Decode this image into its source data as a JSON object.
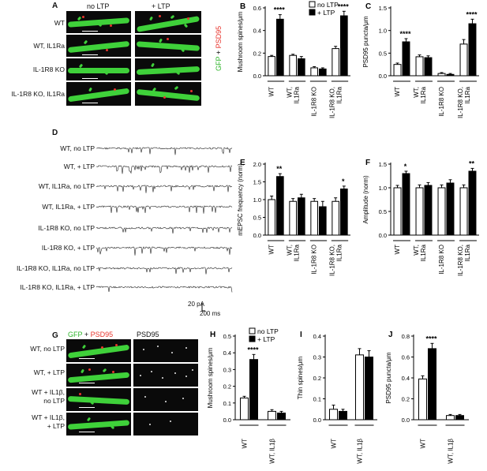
{
  "panelA": {
    "label": "A",
    "col_headers": [
      "no LTP",
      "+ LTP"
    ],
    "rows": [
      "WT",
      "WT, IL1Ra",
      "IL-1R8 KO",
      "IL-1R8 KO, IL1Ra"
    ],
    "legend_gfp": "GFP",
    "legend_plus": "+",
    "legend_psd": "PSD95"
  },
  "panelD": {
    "label": "D",
    "rows": [
      "WT, no LTP",
      "WT, + LTP",
      "WT, IL1Ra, no LTP",
      "WT, IL1Ra, + LTP",
      "IL-1R8 KO, no LTP",
      "IL-1R8 KO, + LTP",
      "IL-1R8 KO, IL1Ra, no LTP",
      "IL-1R8 KO, IL1Ra, + LTP"
    ],
    "scale_pa": "20 pA",
    "scale_ms": "200 ms"
  },
  "panelG": {
    "label": "G",
    "col_gfp": "GFP",
    "col_plus": "+",
    "col_psd_red": "PSD95",
    "col_psd": "PSD95",
    "rows": [
      {
        "line1": "WT, no LTP",
        "line2": ""
      },
      {
        "line1": "WT, + LTP",
        "line2": ""
      },
      {
        "line1": "WT + IL1β,",
        "line2": "no LTP"
      },
      {
        "line1": "WT + IL1β,",
        "line2": "+ LTP"
      }
    ]
  },
  "colors": {
    "no_ltp": "#ffffff",
    "ltp": "#000000",
    "gfp": "#3fd13a",
    "psd95": "#e8342c"
  },
  "chart_data": [
    {
      "panel": "B",
      "type": "bar",
      "ylabel": "Mushroom spines/μm",
      "ylim": [
        0,
        0.6
      ],
      "yticks": [
        0.0,
        0.2,
        0.4,
        0.6
      ],
      "groups": [
        [
          "WT"
        ],
        [
          "WT,",
          "IL1Ra"
        ],
        [
          "IL-1R8 KO"
        ],
        [
          "IL-1R8 KO,",
          "IL1Ra"
        ]
      ],
      "series": [
        {
          "name": "no LTP",
          "values": [
            0.17,
            0.18,
            0.07,
            0.24
          ]
        },
        {
          "name": "+ LTP",
          "values": [
            0.5,
            0.15,
            0.06,
            0.53
          ]
        }
      ],
      "errors": [
        [
          0.01,
          0.01,
          0.01,
          0.02
        ],
        [
          0.04,
          0.02,
          0.01,
          0.04
        ]
      ],
      "stars": [
        {
          "group": 0,
          "text": "****"
        },
        {
          "group": 3,
          "text": "****"
        }
      ],
      "legend": true
    },
    {
      "panel": "C",
      "type": "bar",
      "ylabel": "PSD95 puncta/μm",
      "ylim": [
        0,
        1.5
      ],
      "yticks": [
        0.0,
        0.5,
        1.0,
        1.5
      ],
      "groups": [
        [
          "WT"
        ],
        [
          "WT,",
          "IL1Ra"
        ],
        [
          "IL-1R8 KO"
        ],
        [
          "IL-1R8 KO,",
          "IL1Ra"
        ]
      ],
      "series": [
        {
          "name": "no LTP",
          "values": [
            0.25,
            0.42,
            0.05,
            0.7
          ]
        },
        {
          "name": "+ LTP",
          "values": [
            0.75,
            0.4,
            0.03,
            1.15
          ]
        }
      ],
      "errors": [
        [
          0.03,
          0.04,
          0.02,
          0.1
        ],
        [
          0.07,
          0.04,
          0.02,
          0.1
        ]
      ],
      "stars": [
        {
          "group": 0,
          "text": "****"
        },
        {
          "group": 3,
          "text": "****"
        }
      ],
      "legend": false
    },
    {
      "panel": "E",
      "type": "bar",
      "ylabel": "mEPSC frequency (norm)",
      "ylim": [
        0,
        2.0
      ],
      "yticks": [
        0.0,
        0.5,
        1.0,
        1.5,
        2.0
      ],
      "groups": [
        [
          "WT"
        ],
        [
          "WT,",
          "IL1Ra"
        ],
        [
          "IL-1R8 KO"
        ],
        [
          "IL-1R8 KO,",
          "IL1Ra"
        ]
      ],
      "series": [
        {
          "name": "no LTP",
          "values": [
            1.0,
            0.95,
            0.95,
            0.95
          ]
        },
        {
          "name": "+ LTP",
          "values": [
            1.65,
            1.05,
            0.8,
            1.3
          ]
        }
      ],
      "errors": [
        [
          0.1,
          0.08,
          0.08,
          0.1
        ],
        [
          0.08,
          0.1,
          0.15,
          0.08
        ]
      ],
      "stars": [
        {
          "group": 0,
          "text": "**"
        },
        {
          "group": 3,
          "text": "*"
        }
      ],
      "legend": false
    },
    {
      "panel": "F",
      "type": "bar",
      "ylabel": "Amplitude (norm)",
      "ylim": [
        0,
        1.5
      ],
      "yticks": [
        0.0,
        0.5,
        1.0,
        1.5
      ],
      "groups": [
        [
          "WT"
        ],
        [
          "WT,",
          "IL1Ra"
        ],
        [
          "IL-1R8 KO"
        ],
        [
          "IL-1R8 KO,",
          "IL1Ra"
        ]
      ],
      "series": [
        {
          "name": "no LTP",
          "values": [
            1.0,
            1.0,
            1.0,
            1.0
          ]
        },
        {
          "name": "+ LTP",
          "values": [
            1.3,
            1.05,
            1.1,
            1.35
          ]
        }
      ],
      "errors": [
        [
          0.05,
          0.06,
          0.06,
          0.06
        ],
        [
          0.05,
          0.06,
          0.07,
          0.06
        ]
      ],
      "stars": [
        {
          "group": 0,
          "text": "*"
        },
        {
          "group": 3,
          "text": "**"
        }
      ],
      "legend": false
    },
    {
      "panel": "H",
      "type": "bar",
      "ylabel": "Mushroom spines/μm",
      "ylim": [
        0,
        0.5
      ],
      "yticks": [
        0.0,
        0.1,
        0.2,
        0.3,
        0.4,
        0.5
      ],
      "groups": [
        [
          "WT"
        ],
        [
          "WT, IL1β"
        ]
      ],
      "series": [
        {
          "name": "no LTP",
          "values": [
            0.13,
            0.05
          ]
        },
        {
          "name": "+ LTP",
          "values": [
            0.36,
            0.04
          ]
        }
      ],
      "errors": [
        [
          0.01,
          0.01
        ],
        [
          0.03,
          0.01
        ]
      ],
      "stars": [
        {
          "group": 0,
          "text": "****"
        }
      ],
      "legend": true
    },
    {
      "panel": "I",
      "type": "bar",
      "ylabel": "Thin spines/μm",
      "ylim": [
        0,
        0.4
      ],
      "yticks": [
        0.0,
        0.1,
        0.2,
        0.3,
        0.4
      ],
      "groups": [
        [
          "WT"
        ],
        [
          "WT, IL1β"
        ]
      ],
      "series": [
        {
          "name": "no LTP",
          "values": [
            0.05,
            0.31
          ]
        },
        {
          "name": "+ LTP",
          "values": [
            0.04,
            0.3
          ]
        }
      ],
      "errors": [
        [
          0.02,
          0.03
        ],
        [
          0.01,
          0.03
        ]
      ],
      "stars": [],
      "legend": false
    },
    {
      "panel": "J",
      "type": "bar",
      "ylabel": "PSD95 puncta/μm",
      "ylim": [
        0,
        0.8
      ],
      "yticks": [
        0.0,
        0.2,
        0.4,
        0.6,
        0.8
      ],
      "groups": [
        [
          "WT"
        ],
        [
          "WT, IL1β"
        ]
      ],
      "series": [
        {
          "name": "no LTP",
          "values": [
            0.39,
            0.04
          ]
        },
        {
          "name": "+ LTP",
          "values": [
            0.68,
            0.04
          ]
        }
      ],
      "errors": [
        [
          0.03,
          0.01
        ],
        [
          0.05,
          0.01
        ]
      ],
      "stars": [
        {
          "group": 0,
          "text": "****"
        }
      ],
      "legend": false
    }
  ]
}
